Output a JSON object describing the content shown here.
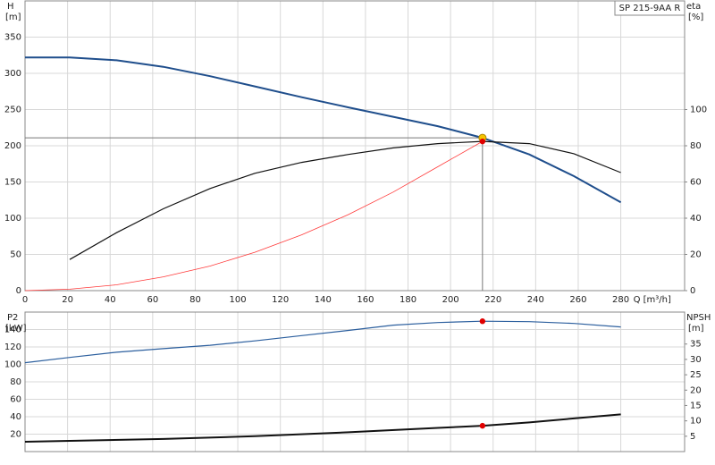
{
  "chart_data": [
    {
      "type": "line",
      "y_label": "H",
      "y_unit": "[m]",
      "y2_label": "eta",
      "y2_unit": "[%]",
      "x_label": "Q [m³/h]",
      "model": "SP 215-9AA R",
      "xlim": [
        0,
        310
      ],
      "xticks": [
        0,
        20,
        40,
        60,
        80,
        100,
        120,
        140,
        160,
        180,
        200,
        220,
        240,
        260,
        280
      ],
      "ylim": [
        0,
        400
      ],
      "yticks": [
        0,
        50,
        100,
        150,
        200,
        250,
        300,
        350
      ],
      "y2lim": [
        0,
        160
      ],
      "y2ticks": [
        0,
        20,
        40,
        60,
        80,
        100
      ],
      "grid": true,
      "xtick_labels": true,
      "series": [
        {
          "color": "#1f4e8c",
          "width": 2,
          "x": [
            0,
            21,
            43,
            65,
            87,
            108,
            130,
            152,
            173,
            194,
            215,
            237,
            258,
            280
          ],
          "values": [
            322,
            322,
            318,
            309,
            296,
            282,
            267,
            253,
            240,
            227,
            211,
            188,
            158,
            122
          ]
        },
        {
          "color": "#111111",
          "width": 1.2,
          "axis": "y2",
          "x": [
            21,
            43,
            65,
            87,
            108,
            130,
            152,
            173,
            194,
            215,
            237,
            258,
            280
          ],
          "values": [
            17.2,
            32,
            45.2,
            56.4,
            64.8,
            70.8,
            75.2,
            78.8,
            81.2,
            82.4,
            81.2,
            75.6,
            65.2
          ]
        },
        {
          "color": "#ff3a3a",
          "width": 0.8,
          "x": [
            0,
            21,
            43,
            65,
            87,
            108,
            130,
            152,
            173,
            194,
            215
          ],
          "values": [
            0,
            2,
            8,
            19,
            34,
            53,
            77,
            105,
            136,
            171,
            206
          ]
        }
      ],
      "duty_point": {
        "x": 215,
        "y": 211,
        "color": "#f5c400"
      },
      "markers": [
        {
          "x": 215,
          "y": 206,
          "color": "#e00000"
        }
      ]
    },
    {
      "type": "line",
      "y_label": "P2",
      "y_unit": "[kW]",
      "y2_label": "NPSH",
      "y2_unit": "[m]",
      "xlim": [
        0,
        310
      ],
      "xticks": [
        0,
        20,
        40,
        60,
        80,
        100,
        120,
        140,
        160,
        180,
        200,
        220,
        240,
        260,
        280
      ],
      "ylim": [
        0,
        160
      ],
      "yticks": [
        20,
        40,
        60,
        80,
        100,
        120,
        140
      ],
      "y2lim": [
        0,
        45.4
      ],
      "y2ticks": [
        5,
        10,
        15,
        20,
        25,
        30,
        35
      ],
      "grid": true,
      "xtick_labels": false,
      "series": [
        {
          "color": "#2c5f9e",
          "width": 1.2,
          "x": [
            0,
            21,
            43,
            65,
            87,
            108,
            130,
            152,
            173,
            194,
            215,
            237,
            258,
            280
          ],
          "values": [
            102,
            108,
            114,
            118,
            122,
            127,
            133,
            139,
            145,
            148,
            149.5,
            149,
            147,
            143
          ]
        },
        {
          "color": "#111111",
          "width": 2,
          "axis": "y2",
          "x": [
            0,
            21,
            65,
            108,
            152,
            194,
            215,
            237,
            258,
            280
          ],
          "values": [
            3.2,
            3.5,
            4.1,
            5,
            6.3,
            7.7,
            8.4,
            9.5,
            10.8,
            12.1
          ]
        }
      ],
      "markers": [
        {
          "x": 215,
          "y": 149.5,
          "color": "#e00000"
        },
        {
          "x": 215,
          "y": 8.4,
          "axis": "y2",
          "color": "#e00000"
        }
      ]
    }
  ]
}
